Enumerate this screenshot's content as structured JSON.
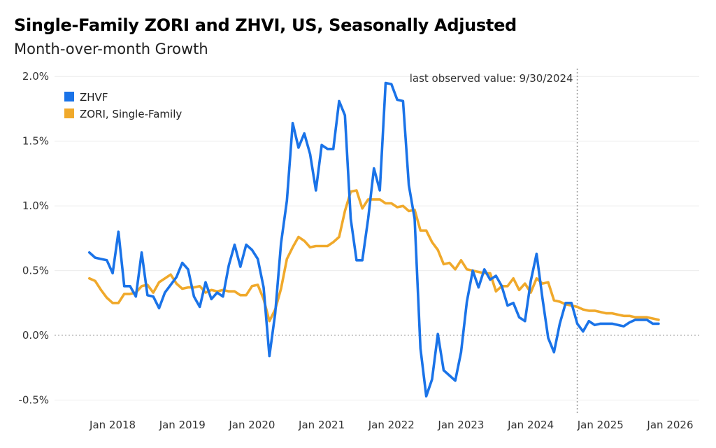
{
  "title": "Single-Family ZORI and ZHVI, US, Seasonally Adjusted",
  "subtitle": "Month-over-month Growth",
  "chart_data": {
    "type": "line",
    "title": "Single-Family ZORI and ZHVI, US, Seasonally Adjusted",
    "subtitle": "Month-over-month Growth",
    "xlabel": "",
    "ylabel": "",
    "x_start": "2017-09",
    "x_step": "month",
    "xlim": [
      "2017-03",
      "2026-06"
    ],
    "ylim": [
      -0.6,
      2.05
    ],
    "y_ticks": [
      -0.5,
      0.0,
      0.5,
      1.0,
      1.5,
      2.0
    ],
    "y_tick_labels": [
      "-0.5%",
      "0.0%",
      "0.5%",
      "1.0%",
      "1.5%",
      "2.0%"
    ],
    "x_ticks": [
      "2018-01",
      "2019-01",
      "2020-01",
      "2021-01",
      "2022-01",
      "2023-01",
      "2024-01",
      "2025-01",
      "2026-01"
    ],
    "x_tick_labels": [
      "Jan 2018",
      "Jan 2019",
      "Jan 2020",
      "Jan 2021",
      "Jan 2022",
      "Jan 2023",
      "Jan 2024",
      "Jan 2025",
      "Jan 2026"
    ],
    "grid": "horizontal",
    "zero_line": "dotted",
    "legend_position": "top-left",
    "colors": {
      "ZHVF": "#1a73e8",
      "ZORI, Single-Family": "#f0a92b"
    },
    "annotation": {
      "x": "2024-09",
      "text": "last observed value: 9/30/2024",
      "style": "dotted vertical line"
    },
    "series": [
      {
        "name": "ZHVF",
        "values": [
          0.64,
          0.6,
          0.59,
          0.58,
          0.48,
          0.8,
          0.38,
          0.38,
          0.3,
          0.64,
          0.31,
          0.3,
          0.21,
          0.33,
          0.39,
          0.45,
          0.56,
          0.51,
          0.3,
          0.22,
          0.41,
          0.28,
          0.33,
          0.3,
          0.54,
          0.7,
          0.53,
          0.7,
          0.66,
          0.59,
          0.37,
          -0.16,
          0.17,
          0.71,
          1.04,
          1.64,
          1.45,
          1.56,
          1.4,
          1.12,
          1.47,
          1.44,
          1.44,
          1.81,
          1.7,
          0.9,
          0.58,
          0.58,
          0.9,
          1.29,
          1.12,
          1.95,
          1.94,
          1.82,
          1.81,
          1.16,
          0.9,
          -0.1,
          -0.47,
          -0.34,
          0.01,
          -0.27,
          -0.31,
          -0.35,
          -0.13,
          0.26,
          0.5,
          0.37,
          0.51,
          0.43,
          0.46,
          0.38,
          0.23,
          0.25,
          0.14,
          0.11,
          0.42,
          0.63,
          0.29,
          -0.02,
          -0.13,
          0.09,
          0.25,
          0.25,
          0.09,
          0.03,
          0.11,
          0.08,
          0.09,
          0.09,
          0.09,
          0.08,
          0.07,
          0.1,
          0.12,
          0.12,
          0.12,
          0.09,
          0.09
        ]
      },
      {
        "name": "ZORI, Single-Family",
        "values": [
          0.44,
          0.42,
          0.35,
          0.29,
          0.25,
          0.25,
          0.32,
          0.32,
          0.33,
          0.38,
          0.39,
          0.33,
          0.41,
          0.44,
          0.47,
          0.4,
          0.36,
          0.37,
          0.37,
          0.38,
          0.33,
          0.35,
          0.34,
          0.35,
          0.34,
          0.34,
          0.31,
          0.31,
          0.38,
          0.39,
          0.28,
          0.11,
          0.2,
          0.36,
          0.59,
          0.68,
          0.76,
          0.73,
          0.68,
          0.69,
          0.69,
          0.69,
          0.72,
          0.76,
          0.96,
          1.11,
          1.12,
          0.98,
          1.05,
          1.05,
          1.05,
          1.02,
          1.02,
          0.99,
          1.0,
          0.96,
          0.97,
          0.81,
          0.81,
          0.72,
          0.66,
          0.55,
          0.56,
          0.51,
          0.58,
          0.51,
          0.5,
          0.49,
          0.48,
          0.48,
          0.34,
          0.38,
          0.38,
          0.44,
          0.35,
          0.4,
          0.33,
          0.44,
          0.4,
          0.41,
          0.27,
          0.26,
          0.24,
          0.23,
          0.22,
          0.2,
          0.19,
          0.19,
          0.18,
          0.17,
          0.17,
          0.16,
          0.15,
          0.15,
          0.14,
          0.14,
          0.14,
          0.13,
          0.12
        ]
      }
    ]
  }
}
